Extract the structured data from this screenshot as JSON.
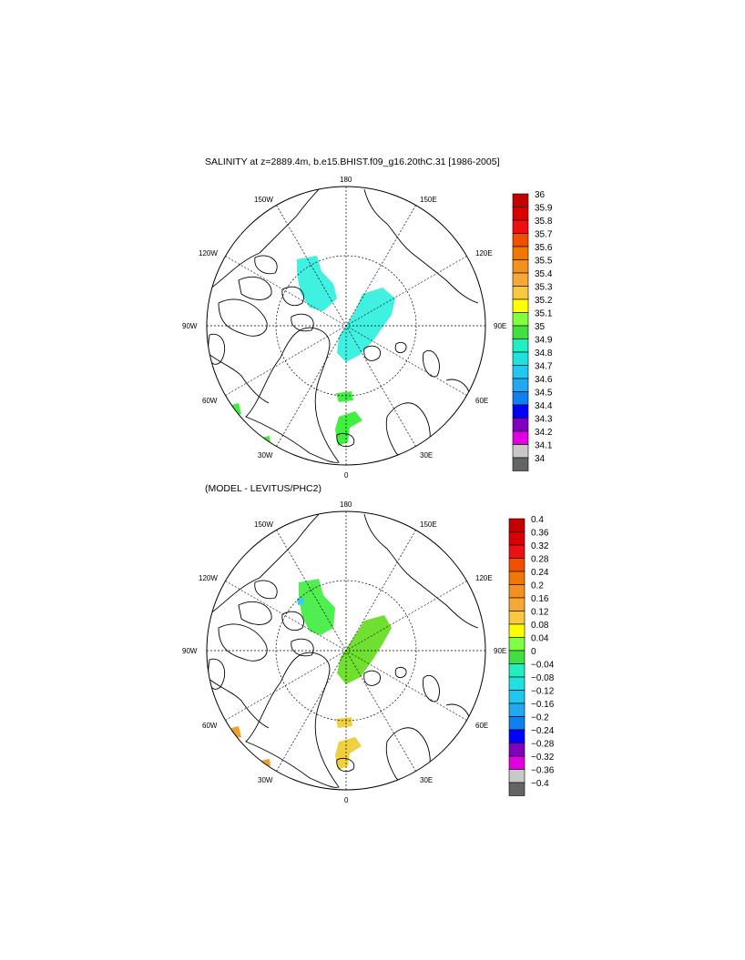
{
  "panels": [
    {
      "id": "top",
      "title": "SALINITY at z=2889.4m, b.e15.BHIST.f09_g16.20thC.31 [1986-2005]",
      "colorbar": {
        "labels": [
          "36",
          "35.9",
          "35.8",
          "35.7",
          "35.6",
          "35.5",
          "35.4",
          "35.3",
          "35.2",
          "35.1",
          "35",
          "34.9",
          "34.8",
          "34.7",
          "34.6",
          "34.5",
          "34.4",
          "34.3",
          "34.2",
          "34.1",
          "34"
        ],
        "colors": [
          "#c40000",
          "#d80000",
          "#ee1010",
          "#f05000",
          "#f07800",
          "#f39020",
          "#f5a835",
          "#f8c840",
          "#ffff00",
          "#80ff40",
          "#40e040",
          "#20f0c0",
          "#20e0e0",
          "#20c8f0",
          "#20a8f0",
          "#1080f0",
          "#0000ff",
          "#8000c0",
          "#e000e0",
          "#c8c8c8",
          "#646464"
        ]
      },
      "regions": [
        {
          "name": "region-cyan-canada-basin",
          "color": "#40f0e0"
        },
        {
          "name": "region-cyan-eurasian-basin",
          "color": "#40f0e0"
        },
        {
          "name": "region-green-fram-a",
          "color": "#40f040"
        },
        {
          "name": "region-green-fram-b",
          "color": "#40f040"
        },
        {
          "name": "region-green-labrador-a",
          "color": "#40f040"
        },
        {
          "name": "region-green-labrador-b",
          "color": "#40f040"
        }
      ]
    },
    {
      "id": "bottom",
      "title": "(MODEL - LEVITUS/PHC2)",
      "colorbar": {
        "labels": [
          "0.4",
          "0.36",
          "0.32",
          "0.28",
          "0.24",
          "0.2",
          "0.16",
          "0.12",
          "0.08",
          "0.04",
          "0",
          "−0.04",
          "−0.08",
          "−0.12",
          "−0.16",
          "−0.2",
          "−0.24",
          "−0.28",
          "−0.32",
          "−0.36",
          "−0.4"
        ],
        "colors": [
          "#c40000",
          "#d80000",
          "#ee1010",
          "#f05000",
          "#f07800",
          "#f39020",
          "#f5a835",
          "#f8c840",
          "#ffff00",
          "#80ff40",
          "#40e040",
          "#20f0c0",
          "#20e0e0",
          "#20c8f0",
          "#20a8f0",
          "#1080f0",
          "#0000ff",
          "#8000c0",
          "#e000e0",
          "#c8c8c8",
          "#646464"
        ]
      },
      "regions": [
        {
          "name": "region-green-canada-basin",
          "color": "#50ee50"
        },
        {
          "name": "region-lime-eurasian-basin",
          "color": "#70e030"
        },
        {
          "name": "region-yellow-fram-a",
          "color": "#f0d040"
        },
        {
          "name": "region-yellow-fram-b",
          "color": "#f0d040"
        },
        {
          "name": "region-orange-labrador-a",
          "color": "#f0a030"
        },
        {
          "name": "region-orange-labrador-b",
          "color": "#f0a030"
        }
      ]
    }
  ],
  "map_labels": {
    "top_meridian": "180",
    "bottom_meridian": "0",
    "lon_150w": "150W",
    "lon_150e": "150E",
    "lon_120w": "120W",
    "lon_120e": "120E",
    "lon_90w": "90W",
    "lon_90e": "90E",
    "lon_60w": "60W",
    "lon_60e": "60E",
    "lon_30w": "30W",
    "lon_30e": "30E"
  }
}
